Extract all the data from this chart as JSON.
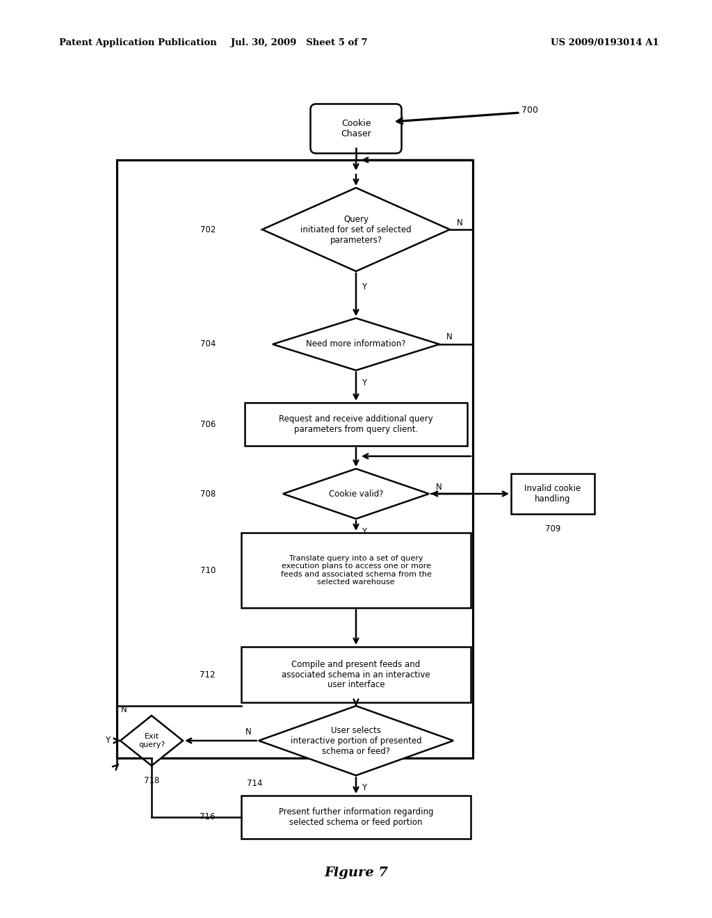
{
  "bg_color": "#ffffff",
  "header_left": "Patent Application Publication",
  "header_mid": "Jul. 30, 2009   Sheet 5 of 7",
  "header_right": "US 2009/0193014 A1",
  "figure_label": "Figure 7",
  "fig_num": "700",
  "lw": 1.8
}
